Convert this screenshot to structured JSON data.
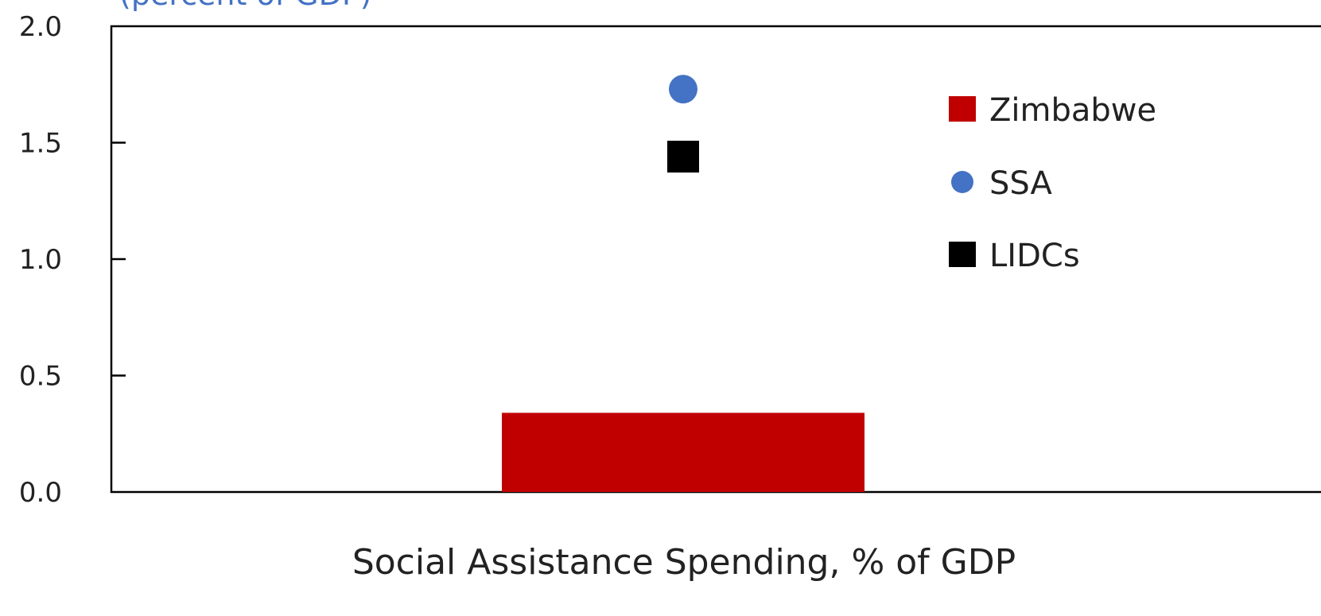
{
  "chart_data": {
    "type": "bar",
    "subtitle_partial": "(percent of GDP)",
    "xlabel": "Social Assistance Spending, % of GDP",
    "ylim": [
      0,
      2.0
    ],
    "yticks": [
      "0.0",
      "0.5",
      "1.0",
      "1.5",
      "2.0"
    ],
    "ytick_values": [
      0,
      0.5,
      1.0,
      1.5,
      2.0
    ],
    "grid": false,
    "legend_position": "top-right",
    "series": [
      {
        "name": "Zimbabwe",
        "marker": "bar",
        "value": 0.34,
        "color": "#C00000"
      },
      {
        "name": "SSA",
        "marker": "circle",
        "value": 1.73,
        "color": "#4472C4"
      },
      {
        "name": "LIDCs",
        "marker": "square",
        "value": 1.44,
        "color": "#000000"
      }
    ]
  }
}
